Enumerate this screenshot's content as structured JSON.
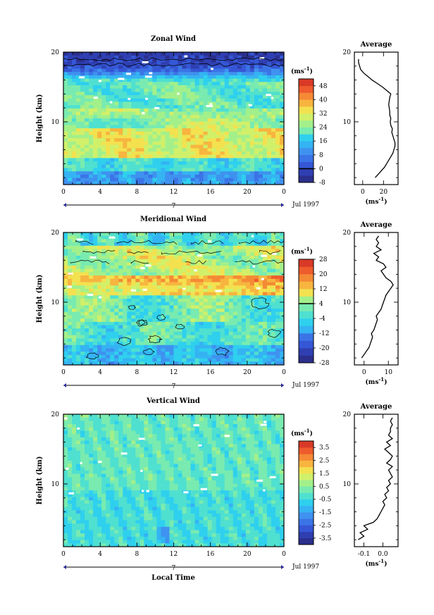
{
  "chart_data": [
    {
      "type": "heatmap",
      "title": "Zonal Wind",
      "xlabel": "",
      "ylabel": "Height (km)",
      "xlim": [
        0,
        24
      ],
      "ylim": [
        1,
        20
      ],
      "xticks": [
        "0",
        "4",
        "8",
        "12",
        "16",
        "20",
        "0"
      ],
      "yticks": [
        "10",
        "20"
      ],
      "date_label": "7",
      "month_label": "Jul 1997",
      "colorbar": {
        "unit_base": "(ms",
        "unit_exp": "-1",
        "unit_close": ")",
        "levels": [
          -8,
          -4,
          0,
          4,
          8,
          12,
          16,
          20,
          24,
          28,
          32,
          36,
          40,
          44,
          48,
          52
        ],
        "labels": [
          "48",
          "40",
          "32",
          "24",
          "16",
          "8",
          "0",
          "-8"
        ],
        "zero_line": 0
      },
      "profile": {
        "title": "Average",
        "xlim": [
          -8,
          34
        ],
        "xticks": [
          "0",
          "20"
        ],
        "xlabel_base": "(ms",
        "xlabel_exp": "-1",
        "xlabel_close": ")",
        "height": [
          2,
          2.5,
          3,
          3.5,
          4,
          4.5,
          5,
          5.5,
          6,
          6.5,
          7,
          7.5,
          8,
          8.5,
          9,
          9.5,
          10,
          10.5,
          11,
          11.5,
          12,
          12.5,
          13,
          13.5,
          14,
          14.5,
          15,
          15.5,
          16,
          16.5,
          17,
          17.5,
          18,
          18.5,
          19
        ],
        "value": [
          12,
          15,
          18,
          21,
          23,
          25,
          27,
          29,
          30,
          31,
          31,
          30,
          29,
          28,
          28.5,
          27,
          26.5,
          27,
          26,
          26,
          25.5,
          25,
          25.5,
          26,
          27,
          23,
          19,
          14,
          9,
          5,
          1,
          -2,
          -3,
          -4,
          -4
        ]
      }
    },
    {
      "type": "heatmap",
      "title": "Meridional Wind",
      "xlabel": "",
      "ylabel": "Height (km)",
      "xlim": [
        0,
        24
      ],
      "ylim": [
        1,
        20
      ],
      "xticks": [
        "0",
        "4",
        "8",
        "12",
        "16",
        "20",
        "0"
      ],
      "yticks": [
        "10",
        "20"
      ],
      "date_label": "7",
      "month_label": "Jul 1997",
      "colorbar": {
        "unit_base": "(ms",
        "unit_exp": "-1",
        "unit_close": ")",
        "levels": [
          -28,
          -24,
          -20,
          -16,
          -12,
          -8,
          -4,
          0,
          4,
          8,
          12,
          16,
          20,
          24,
          28
        ],
        "labels": [
          "28",
          "20",
          "12",
          "4",
          "-4",
          "-12",
          "-20",
          "-28"
        ],
        "zero_line": 4
      },
      "profile": {
        "title": "Average",
        "xlim": [
          -4,
          14
        ],
        "xticks": [
          "0",
          "10"
        ],
        "xlabel_base": "(ms",
        "xlabel_exp": "-1",
        "xlabel_close": ")",
        "height": [
          2,
          2.5,
          3,
          3.5,
          4,
          4.5,
          5,
          5.5,
          6,
          6.5,
          7,
          7.5,
          8,
          8.5,
          9,
          9.5,
          10,
          10.5,
          11,
          11.5,
          12,
          12.5,
          13,
          13.5,
          14,
          14.5,
          15,
          15.5,
          16,
          16.5,
          17,
          17.5,
          18,
          18.5,
          19,
          19.5
        ],
        "value": [
          -1,
          0,
          1,
          2,
          2.5,
          3,
          3.5,
          3,
          4,
          4.5,
          5,
          5.5,
          5,
          6,
          7,
          7.5,
          8,
          8.5,
          9,
          10,
          11,
          12,
          11,
          9,
          8,
          7,
          9,
          8,
          5,
          6,
          4,
          7,
          5,
          6,
          5,
          6
        ]
      }
    },
    {
      "type": "heatmap",
      "title": "Vertical Wind",
      "xlabel": "Local Time",
      "ylabel": "Height (km)",
      "xlim": [
        0,
        24
      ],
      "ylim": [
        1,
        20
      ],
      "xticks": [
        "0",
        "4",
        "8",
        "12",
        "16",
        "20",
        "0"
      ],
      "yticks": [
        "10",
        "20"
      ],
      "date_label": "7",
      "month_label": "Jul 1997",
      "colorbar": {
        "unit_base": "(ms",
        "unit_exp": "-1",
        "unit_close": ")",
        "levels": [
          -4.0,
          -3.5,
          -3.0,
          -2.5,
          -2.0,
          -1.5,
          -1.0,
          -0.5,
          0.0,
          0.5,
          1.0,
          1.5,
          2.0,
          2.5,
          3.0,
          3.5,
          4.0
        ],
        "labels": [
          "3.5",
          "2.5",
          "1.5",
          "0.5",
          "-0.5",
          "-1.5",
          "-2.5",
          "-3.5"
        ],
        "zero_line": null
      },
      "profile": {
        "title": "Average",
        "xlim": [
          -0.15,
          0.08
        ],
        "xticks": [
          "-0.1",
          "0.0"
        ],
        "xlabel_base": "(ms",
        "xlabel_exp": "-1",
        "xlabel_close": ")",
        "height": [
          2,
          2.5,
          3,
          3.5,
          4,
          4.5,
          5,
          5.5,
          6,
          6.5,
          7,
          7.5,
          8,
          8.5,
          9,
          9.5,
          10,
          10.5,
          11,
          11.5,
          12,
          12.5,
          13,
          13.5,
          14,
          14.5,
          15,
          15.5,
          16,
          16.5,
          17,
          17.5,
          18,
          18.5,
          19,
          19.5
        ],
        "value": [
          -0.13,
          -0.1,
          -0.12,
          -0.08,
          -0.1,
          -0.05,
          -0.03,
          -0.02,
          -0.01,
          0.0,
          0.01,
          0.0,
          0.02,
          0.01,
          0.03,
          0.02,
          0.04,
          0.03,
          0.05,
          0.04,
          0.03,
          0.05,
          0.02,
          0.04,
          0.05,
          0.03,
          0.01,
          0.04,
          0.02,
          0.05,
          0.03,
          0.04,
          0.04,
          0.05,
          0.04,
          0.05
        ]
      }
    }
  ]
}
